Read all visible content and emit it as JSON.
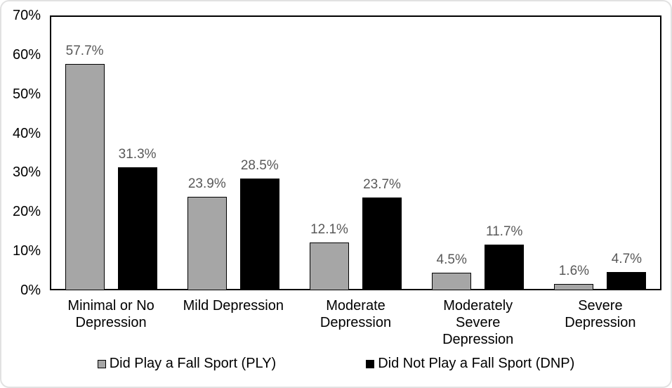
{
  "chart_data": {
    "type": "bar",
    "title": "",
    "xlabel": "",
    "ylabel": "",
    "categories": [
      "Minimal or No Depression",
      "Mild Depression",
      "Moderate Depression",
      "Moderately Severe Depression",
      "Severe Depression"
    ],
    "series": [
      {
        "name": "Did Play a Fall Sport (PLY)",
        "key": "ply",
        "color": "#A6A6A6",
        "border_color": "#000000",
        "values": [
          57.7,
          23.9,
          12.1,
          4.5,
          1.6
        ]
      },
      {
        "name": "Did Not Play a Fall Sport (DNP)",
        "key": "dnp",
        "color": "#000000",
        "border_color": "#000000",
        "values": [
          31.3,
          28.5,
          23.7,
          11.7,
          4.7
        ]
      }
    ],
    "value_label_suffix": "%",
    "value_label_color": "#595959",
    "axis_label_color": "#000000",
    "y_tick_labels": [
      "70%",
      "60%",
      "50%",
      "40%",
      "30%",
      "20%",
      "10%",
      "0%"
    ],
    "ylim": [
      0,
      70
    ],
    "grid": false,
    "legend_position": "bottom"
  }
}
